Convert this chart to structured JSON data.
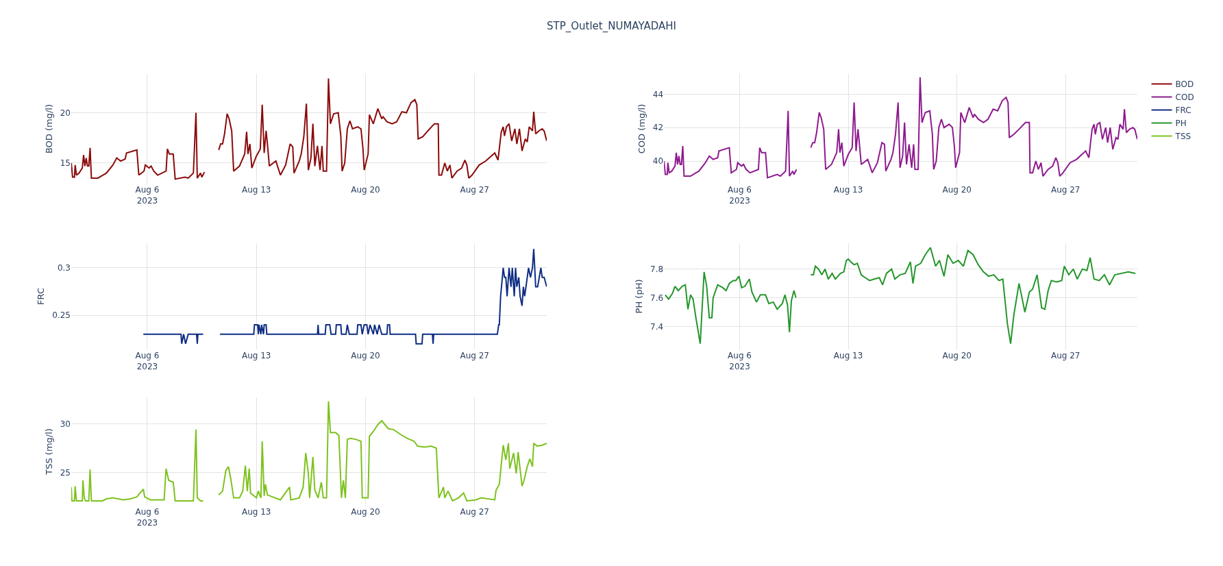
{
  "chart_data": [
    {
      "type": "line",
      "title": "STP_Outlet_NUMAYADAHI",
      "ylabel": "BOD (mg/l)",
      "grid": true,
      "legend": "top right",
      "xlim": [
        "2023-08-01T03:00",
        "2023-08-31T15:00"
      ],
      "xticks": [
        {
          "value": "2023-08-06",
          "label": "Aug 6\n2023"
        },
        {
          "value": "2023-08-13",
          "label": "Aug 13"
        },
        {
          "value": "2023-08-20",
          "label": "Aug 20"
        },
        {
          "value": "2023-08-27",
          "label": "Aug 27"
        }
      ],
      "ylim": [
        12.95,
        23.85
      ],
      "yticks": [
        15,
        20
      ],
      "x": [
        "2023-08-01T03:00",
        "2023-08-01T05:00",
        "2023-08-01T08:00",
        "2023-08-01T09:00",
        "2023-08-01T11:00",
        "2023-08-01T15:00",
        "2023-08-01T20:00",
        "2023-08-01T22:00",
        "2023-08-02T00:00",
        "2023-08-02T02:00",
        "2023-08-02T04:00",
        "2023-08-02T06:00",
        "2023-08-02T08:00",
        "2023-08-02T10:00",
        "2023-08-02T20:00",
        "2023-08-03T09:00",
        "2023-08-03T19:00",
        "2023-08-04T01:00",
        "2023-08-04T07:00",
        "2023-08-04T14:00",
        "2023-08-04T16:00",
        "2023-08-05T08:00",
        "2023-08-05T11:00",
        "2023-08-05T19:00",
        "2023-08-05T21:00",
        "2023-08-06T03:00",
        "2023-08-06T06:00",
        "2023-08-06T10:00",
        "2023-08-06T16:00",
        "2023-08-07T05:00",
        "2023-08-07T07:00",
        "2023-08-07T10:00",
        "2023-08-07T16:00",
        "2023-08-07T19:00",
        "2023-08-08T10:00",
        "2023-08-08T15:00",
        "2023-08-08T23:00",
        "2023-08-09T03:00",
        "2023-08-09T05:00",
        "2023-08-09T10:00",
        "2023-08-09T12:00",
        "2023-08-09T16:00",
        "2023-08-10T02:00",
        "2023-08-10T14:00",
        "2023-08-10T17:00",
        "2023-08-10T20:00",
        "2023-08-10T23:00",
        "2023-08-11T03:00",
        "2023-08-11T06:00",
        "2023-08-11T10:00",
        "2023-08-11T13:00",
        "2023-08-11T22:00",
        "2023-08-12T06:00",
        "2023-08-12T09:00",
        "2023-08-12T11:00",
        "2023-08-12T14:00",
        "2023-08-12T17:00",
        "2023-08-13T00:00",
        "2023-08-13T06:00",
        "2023-08-13T09:00",
        "2023-08-13T12:00",
        "2023-08-13T15:00",
        "2023-08-13T17:00",
        "2023-08-13T20:00",
        "2023-08-14T06:00",
        "2023-08-14T13:00",
        "2023-08-14T21:00",
        "2023-08-15T04:00",
        "2023-08-15T08:00",
        "2023-08-15T10:00",
        "2023-08-15T18:00",
        "2023-08-15T21:00",
        "2023-08-16T01:00",
        "2023-08-16T05:00",
        "2023-08-16T08:00",
        "2023-08-16T12:00",
        "2023-08-16T15:00",
        "2023-08-16T18:00",
        "2023-08-16T22:00",
        "2023-08-17T02:00",
        "2023-08-17T05:00",
        "2023-08-17T07:00",
        "2023-08-17T12:00",
        "2023-08-17T15:00",
        "2023-08-17T18:00",
        "2023-08-17T23:00",
        "2023-08-18T06:00",
        "2023-08-18T10:00",
        "2023-08-18T12:00",
        "2023-08-18T16:00",
        "2023-08-18T20:00",
        "2023-08-19T00:00",
        "2023-08-19T04:00",
        "2023-08-19T12:00",
        "2023-08-19T17:00",
        "2023-08-19T20:00",
        "2023-08-19T22:00",
        "2023-08-20T04:00",
        "2023-08-20T06:00",
        "2023-08-20T12:00",
        "2023-08-20T19:00",
        "2023-08-21T01:00",
        "2023-08-21T03:00",
        "2023-08-21T09:00",
        "2023-08-21T17:00",
        "2023-08-22T00:00",
        "2023-08-22T08:00",
        "2023-08-22T15:00",
        "2023-08-22T22:00",
        "2023-08-23T04:00",
        "2023-08-23T07:00",
        "2023-08-23T09:00",
        "2023-08-23T16:00",
        "2023-08-24T00:00",
        "2023-08-24T10:00",
        "2023-08-24T16:00",
        "2023-08-24T17:00",
        "2023-08-24T21:00",
        "2023-08-25T02:00",
        "2023-08-25T06:00",
        "2023-08-25T10:00",
        "2023-08-25T13:00",
        "2023-08-25T21:00",
        "2023-08-26T04:00",
        "2023-08-26T09:00",
        "2023-08-26T12:00",
        "2023-08-26T15:00",
        "2023-08-26T20:00",
        "2023-08-27T07:00",
        "2023-08-27T17:00",
        "2023-08-28T07:00",
        "2023-08-28T12:00",
        "2023-08-28T17:00",
        "2023-08-28T20:00",
        "2023-08-28T22:00",
        "2023-08-29T01:00",
        "2023-08-29T05:00",
        "2023-08-29T09:00",
        "2023-08-29T14:00",
        "2023-08-29T17:00",
        "2023-08-29T21:00",
        "2023-08-30T01:00",
        "2023-08-30T06:00",
        "2023-08-30T09:00",
        "2023-08-30T12:00",
        "2023-08-30T17:00",
        "2023-08-30T19:00",
        "2023-08-30T22:00",
        "2023-08-31T03:00",
        "2023-08-31T08:00",
        "2023-08-31T11:00",
        "2023-08-31T15:00"
      ],
      "series": [
        {
          "name": "BOD",
          "color": "#8b0a0a",
          "values": [
            15.0,
            13.6,
            13.6,
            14.8,
            13.8,
            14.0,
            14.5,
            15.8,
            14.7,
            15.5,
            14.7,
            14.7,
            16.5,
            13.5,
            13.5,
            14.0,
            14.8,
            15.5,
            15.2,
            15.4,
            16.0,
            16.3,
            13.8,
            14.2,
            14.8,
            14.5,
            14.7,
            14.2,
            13.8,
            14.2,
            16.4,
            15.9,
            15.9,
            13.4,
            13.6,
            13.5,
            14.0,
            20.0,
            13.5,
            14.0,
            13.6,
            14.1,
            null,
            16.3,
            16.9,
            16.9,
            17.9,
            19.9,
            19.4,
            18.2,
            14.2,
            14.7,
            15.9,
            18.1,
            15.9,
            16.9,
            14.5,
            15.7,
            16.4,
            20.8,
            16.0,
            18.2,
            16.9,
            14.7,
            15.2,
            13.8,
            14.8,
            16.9,
            16.6,
            14.0,
            15.2,
            15.9,
            17.6,
            20.9,
            14.3,
            15.5,
            18.9,
            14.7,
            16.7,
            14.3,
            16.7,
            14.2,
            14.2,
            23.4,
            18.9,
            19.9,
            20.0,
            17.7,
            14.2,
            15.0,
            18.4,
            19.2,
            18.4,
            18.6,
            18.4,
            16.5,
            14.3,
            15.9,
            19.8,
            18.9,
            20.4,
            19.4,
            19.6,
            19.1,
            18.9,
            19.1,
            20.1,
            20.0,
            21.0,
            21.3,
            20.8,
            17.4,
            17.6,
            18.2,
            18.9,
            18.9,
            13.8,
            13.8,
            15.0,
            14.2,
            14.8,
            13.5,
            14.2,
            14.5,
            15.3,
            14.8,
            13.5,
            13.8,
            14.8,
            15.2,
            16.0,
            15.3,
            18.1,
            18.6,
            17.7,
            18.6,
            18.9,
            17.2,
            18.4,
            16.9,
            18.4,
            16.2,
            17.4,
            17.1,
            18.6,
            18.2,
            20.1,
            17.9,
            18.2,
            18.4,
            18.2,
            17.2
          ]
        }
      ]
    },
    {
      "type": "line",
      "ylabel": "COD (mg/l)",
      "grid": true,
      "legend": "top right",
      "xlim": [
        "2023-08-01T03:00",
        "2023-08-31T15:00"
      ],
      "xticks": [
        {
          "value": "2023-08-06",
          "label": "Aug 6\n2023"
        },
        {
          "value": "2023-08-13",
          "label": "Aug 13"
        },
        {
          "value": "2023-08-20",
          "label": "Aug 20"
        },
        {
          "value": "2023-08-27",
          "label": "Aug 27"
        }
      ],
      "ylim": [
        38.65,
        45.2
      ],
      "yticks": [
        40,
        42,
        44
      ],
      "x": [
        "2023-08-01T03:00",
        "2023-08-01T05:00",
        "2023-08-01T08:00",
        "2023-08-01T09:00",
        "2023-08-01T11:00",
        "2023-08-01T15:00",
        "2023-08-01T20:00",
        "2023-08-01T22:00",
        "2023-08-02T00:00",
        "2023-08-02T02:00",
        "2023-08-02T04:00",
        "2023-08-02T06:00",
        "2023-08-02T08:00",
        "2023-08-02T10:00",
        "2023-08-02T20:00",
        "2023-08-03T09:00",
        "2023-08-03T19:00",
        "2023-08-04T01:00",
        "2023-08-04T07:00",
        "2023-08-04T14:00",
        "2023-08-04T16:00",
        "2023-08-05T08:00",
        "2023-08-05T11:00",
        "2023-08-05T19:00",
        "2023-08-05T21:00",
        "2023-08-06T03:00",
        "2023-08-06T06:00",
        "2023-08-06T10:00",
        "2023-08-06T16:00",
        "2023-08-07T05:00",
        "2023-08-07T07:00",
        "2023-08-07T10:00",
        "2023-08-07T16:00",
        "2023-08-07T19:00",
        "2023-08-08T10:00",
        "2023-08-08T15:00",
        "2023-08-08T23:00",
        "2023-08-09T03:00",
        "2023-08-09T05:00",
        "2023-08-09T10:00",
        "2023-08-09T12:00",
        "2023-08-09T16:00",
        "2023-08-10T02:00",
        "2023-08-10T14:00",
        "2023-08-10T17:00",
        "2023-08-10T20:00",
        "2023-08-10T23:00",
        "2023-08-11T03:00",
        "2023-08-11T06:00",
        "2023-08-11T10:00",
        "2023-08-11T13:00",
        "2023-08-11T22:00",
        "2023-08-12T06:00",
        "2023-08-12T09:00",
        "2023-08-12T11:00",
        "2023-08-12T14:00",
        "2023-08-12T17:00",
        "2023-08-13T00:00",
        "2023-08-13T06:00",
        "2023-08-13T09:00",
        "2023-08-13T12:00",
        "2023-08-13T15:00",
        "2023-08-13T17:00",
        "2023-08-13T20:00",
        "2023-08-14T06:00",
        "2023-08-14T13:00",
        "2023-08-14T21:00",
        "2023-08-15T04:00",
        "2023-08-15T08:00",
        "2023-08-15T10:00",
        "2023-08-15T18:00",
        "2023-08-15T21:00",
        "2023-08-16T01:00",
        "2023-08-16T05:00",
        "2023-08-16T08:00",
        "2023-08-16T12:00",
        "2023-08-16T15:00",
        "2023-08-16T18:00",
        "2023-08-16T22:00",
        "2023-08-17T02:00",
        "2023-08-17T05:00",
        "2023-08-17T07:00",
        "2023-08-17T12:00",
        "2023-08-17T15:00",
        "2023-08-17T18:00",
        "2023-08-17T23:00",
        "2023-08-18T06:00",
        "2023-08-18T10:00",
        "2023-08-18T12:00",
        "2023-08-18T16:00",
        "2023-08-18T20:00",
        "2023-08-19T00:00",
        "2023-08-19T04:00",
        "2023-08-19T12:00",
        "2023-08-19T17:00",
        "2023-08-19T20:00",
        "2023-08-19T22:00",
        "2023-08-20T04:00",
        "2023-08-20T06:00",
        "2023-08-20T12:00",
        "2023-08-20T19:00",
        "2023-08-21T01:00",
        "2023-08-21T03:00",
        "2023-08-21T09:00",
        "2023-08-21T17:00",
        "2023-08-22T00:00",
        "2023-08-22T08:00",
        "2023-08-22T15:00",
        "2023-08-22T22:00",
        "2023-08-23T04:00",
        "2023-08-23T07:00",
        "2023-08-23T09:00",
        "2023-08-23T16:00",
        "2023-08-24T00:00",
        "2023-08-24T10:00",
        "2023-08-24T16:00",
        "2023-08-24T17:00",
        "2023-08-24T21:00",
        "2023-08-25T02:00",
        "2023-08-25T06:00",
        "2023-08-25T10:00",
        "2023-08-25T13:00",
        "2023-08-25T21:00",
        "2023-08-26T04:00",
        "2023-08-26T09:00",
        "2023-08-26T12:00",
        "2023-08-26T15:00",
        "2023-08-26T20:00",
        "2023-08-27T07:00",
        "2023-08-27T17:00",
        "2023-08-28T07:00",
        "2023-08-28T12:00",
        "2023-08-28T17:00",
        "2023-08-28T20:00",
        "2023-08-28T22:00",
        "2023-08-29T01:00",
        "2023-08-29T05:00",
        "2023-08-29T09:00",
        "2023-08-29T14:00",
        "2023-08-29T17:00",
        "2023-08-29T21:00",
        "2023-08-30T01:00",
        "2023-08-30T06:00",
        "2023-08-30T09:00",
        "2023-08-30T12:00",
        "2023-08-30T17:00",
        "2023-08-30T19:00",
        "2023-08-30T22:00",
        "2023-08-31T03:00",
        "2023-08-31T08:00",
        "2023-08-31T11:00",
        "2023-08-31T15:00"
      ],
      "series": [
        {
          "name": "COD",
          "color": "#8e1a8e",
          "values": [
            40.0,
            39.2,
            39.2,
            39.9,
            39.3,
            39.4,
            39.7,
            40.5,
            39.8,
            40.3,
            39.8,
            39.8,
            40.9,
            39.1,
            39.1,
            39.4,
            39.9,
            40.3,
            40.1,
            40.2,
            40.6,
            40.8,
            39.3,
            39.5,
            39.9,
            39.7,
            39.8,
            39.5,
            39.3,
            39.5,
            40.8,
            40.5,
            40.5,
            39.0,
            39.2,
            39.1,
            39.4,
            43.0,
            39.1,
            39.4,
            39.2,
            39.5,
            null,
            40.8,
            41.1,
            41.1,
            41.7,
            42.9,
            42.6,
            41.9,
            39.5,
            39.8,
            40.5,
            41.9,
            40.5,
            41.1,
            39.7,
            40.4,
            40.8,
            43.5,
            40.6,
            41.9,
            41.1,
            39.8,
            40.1,
            39.3,
            39.9,
            41.1,
            41.0,
            39.4,
            40.1,
            40.5,
            41.6,
            43.5,
            39.6,
            40.3,
            42.3,
            39.8,
            41.0,
            39.6,
            41.0,
            39.5,
            39.5,
            45.0,
            42.3,
            42.9,
            43.0,
            41.6,
            39.5,
            40.0,
            42.0,
            42.5,
            42.0,
            42.2,
            42.0,
            40.9,
            39.6,
            40.5,
            42.9,
            42.3,
            43.2,
            42.6,
            42.8,
            42.5,
            42.3,
            42.5,
            43.1,
            43.0,
            43.6,
            43.8,
            43.5,
            41.4,
            41.6,
            41.9,
            42.3,
            42.3,
            39.3,
            39.3,
            40.0,
            39.5,
            39.9,
            39.1,
            39.5,
            39.7,
            40.2,
            39.9,
            39.1,
            39.3,
            39.9,
            40.1,
            40.6,
            40.2,
            41.9,
            42.2,
            41.6,
            42.2,
            42.3,
            41.3,
            42.0,
            41.1,
            42.0,
            40.7,
            41.4,
            41.3,
            42.2,
            41.9,
            43.1,
            41.7,
            41.9,
            42.0,
            41.9,
            41.3
          ]
        }
      ]
    },
    {
      "type": "line",
      "ylabel": "FRC",
      "grid": true,
      "legend": "top right",
      "xlim": [
        "2023-08-01T03:00",
        "2023-08-31T15:00"
      ],
      "xticks": [
        {
          "value": "2023-08-06",
          "label": "Aug 6\n2023"
        },
        {
          "value": "2023-08-13",
          "label": "Aug 13"
        },
        {
          "value": "2023-08-20",
          "label": "Aug 20"
        },
        {
          "value": "2023-08-27",
          "label": "Aug 27"
        }
      ],
      "ylim": [
        0.214,
        0.326
      ],
      "yticks": [
        0.25,
        0.3
      ],
      "x": [
        "2023-08-05T18:00",
        "2023-08-08T04:00",
        "2023-08-08T05:00",
        "2023-08-08T08:00",
        "2023-08-08T11:00",
        "2023-08-08T15:00",
        "2023-08-09T04:00",
        "2023-08-09T05:00",
        "2023-08-09T06:00",
        "2023-08-09T14:00",
        "2023-08-10T02:00",
        "2023-08-10T16:00",
        "2023-08-12T20:00",
        "2023-08-12T21:00",
        "2023-08-13T02:00",
        "2023-08-13T03:00",
        "2023-08-13T04:00",
        "2023-08-13T07:00",
        "2023-08-13T08:00",
        "2023-08-13T11:00",
        "2023-08-13T12:00",
        "2023-08-13T15:00",
        "2023-08-13T16:00",
        "2023-08-16T22:00",
        "2023-08-16T23:00",
        "2023-08-17T00:00",
        "2023-08-17T10:00",
        "2023-08-17T11:00",
        "2023-08-17T17:00",
        "2023-08-17T19:00",
        "2023-08-18T02:00",
        "2023-08-18T03:00",
        "2023-08-18T10:00",
        "2023-08-18T11:00",
        "2023-08-18T18:00",
        "2023-08-18T20:00",
        "2023-08-18T23:00",
        "2023-08-19T11:00",
        "2023-08-19T12:00",
        "2023-08-19T17:00",
        "2023-08-19T19:00",
        "2023-08-19T22:00",
        "2023-08-20T02:00",
        "2023-08-20T04:00",
        "2023-08-20T07:00",
        "2023-08-20T12:00",
        "2023-08-20T14:00",
        "2023-08-20T18:00",
        "2023-08-20T21:00",
        "2023-08-21T01:00",
        "2023-08-21T09:00",
        "2023-08-21T10:00",
        "2023-08-21T13:00",
        "2023-08-21T14:00",
        "2023-08-23T05:00",
        "2023-08-23T06:00",
        "2023-08-23T15:00",
        "2023-08-23T16:00",
        "2023-08-24T07:00",
        "2023-08-24T08:00",
        "2023-08-24T09:00",
        "2023-08-28T11:00",
        "2023-08-28T13:00",
        "2023-08-28T14:00",
        "2023-08-28T16:00",
        "2023-08-28T20:00",
        "2023-08-28T22:00",
        "2023-08-29T00:00",
        "2023-08-29T02:00",
        "2023-08-29T05:00",
        "2023-08-29T08:00",
        "2023-08-29T10:00",
        "2023-08-29T13:00",
        "2023-08-29T15:00",
        "2023-08-29T17:00",
        "2023-08-29T20:00",
        "2023-08-29T22:00",
        "2023-08-30T01:00",
        "2023-08-30T03:00",
        "2023-08-30T05:00",
        "2023-08-30T09:00",
        "2023-08-30T11:00",
        "2023-08-30T14:00",
        "2023-08-30T17:00",
        "2023-08-30T19:00",
        "2023-08-30T22:00",
        "2023-08-31T01:00",
        "2023-08-31T06:00",
        "2023-08-31T08:00",
        "2023-08-31T11:00",
        "2023-08-31T15:00"
      ],
      "series": [
        {
          "name": "FRC",
          "color": "#0e2d84",
          "values": [
            0.23,
            0.23,
            0.22,
            0.23,
            0.22,
            0.23,
            0.23,
            0.22,
            0.23,
            0.23,
            null,
            0.23,
            0.23,
            0.24,
            0.24,
            0.23,
            0.24,
            0.23,
            0.24,
            0.23,
            0.24,
            0.24,
            0.23,
            0.23,
            0.24,
            0.23,
            0.23,
            0.24,
            0.24,
            0.23,
            0.23,
            0.24,
            0.24,
            0.23,
            0.23,
            0.24,
            0.23,
            0.23,
            0.24,
            0.24,
            0.23,
            0.24,
            0.24,
            0.23,
            0.24,
            0.23,
            0.24,
            0.23,
            0.24,
            0.23,
            0.23,
            0.24,
            0.24,
            0.23,
            0.23,
            0.22,
            0.22,
            0.23,
            0.23,
            0.22,
            0.23,
            0.23,
            0.24,
            0.24,
            0.27,
            0.3,
            0.29,
            0.29,
            0.27,
            0.3,
            0.28,
            0.3,
            0.27,
            0.3,
            0.28,
            0.29,
            0.27,
            0.26,
            0.28,
            0.27,
            0.29,
            0.3,
            0.29,
            0.3,
            0.32,
            0.28,
            0.28,
            0.3,
            0.29,
            0.29,
            0.28
          ]
        }
      ]
    },
    {
      "type": "line",
      "ylabel": "PH (pH)",
      "grid": true,
      "legend": "top right",
      "xlim": [
        "2023-08-01T03:00",
        "2023-08-31T15:00"
      ],
      "xticks": [
        {
          "value": "2023-08-06",
          "label": "Aug 6\n2023"
        },
        {
          "value": "2023-08-13",
          "label": "Aug 13"
        },
        {
          "value": "2023-08-20",
          "label": "Aug 20"
        },
        {
          "value": "2023-08-27",
          "label": "Aug 27"
        }
      ],
      "ylim": [
        7.24,
        7.98
      ],
      "yticks": [
        7.4,
        7.6,
        7.8
      ],
      "x": [
        "2023-08-01T05:00",
        "2023-08-01T10:00",
        "2023-08-01T16:00",
        "2023-08-01T20:00",
        "2023-08-02T01:00",
        "2023-08-02T07:00",
        "2023-08-02T12:00",
        "2023-08-02T16:00",
        "2023-08-02T20:00",
        "2023-08-03T00:00",
        "2023-08-03T04:00",
        "2023-08-03T11:00",
        "2023-08-03T17:00",
        "2023-08-03T21:00",
        "2023-08-04T01:00",
        "2023-08-04T05:00",
        "2023-08-04T07:00",
        "2023-08-04T14:00",
        "2023-08-04T22:00",
        "2023-08-05T03:00",
        "2023-08-05T08:00",
        "2023-08-05T14:00",
        "2023-08-05T18:00",
        "2023-08-05T23:00",
        "2023-08-06T03:00",
        "2023-08-06T08:00",
        "2023-08-06T15:00",
        "2023-08-06T19:00",
        "2023-08-07T02:00",
        "2023-08-07T08:00",
        "2023-08-07T16:00",
        "2023-08-07T21:00",
        "2023-08-08T04:00",
        "2023-08-08T10:00",
        "2023-08-08T18:00",
        "2023-08-08T22:00",
        "2023-08-09T02:00",
        "2023-08-09T05:00",
        "2023-08-09T08:00",
        "2023-08-09T12:00",
        "2023-08-09T15:00",
        "2023-08-10T02:00",
        "2023-08-10T14:00",
        "2023-08-10T18:00",
        "2023-08-10T21:00",
        "2023-08-11T02:00",
        "2023-08-11T07:00",
        "2023-08-11T12:00",
        "2023-08-11T17:00",
        "2023-08-11T23:00",
        "2023-08-12T04:00",
        "2023-08-12T12:00",
        "2023-08-12T17:00",
        "2023-08-12T21:00",
        "2023-08-13T00:00",
        "2023-08-13T04:00",
        "2023-08-13T09:00",
        "2023-08-13T14:00",
        "2023-08-13T20:00",
        "2023-08-14T02:00",
        "2023-08-14T09:00",
        "2023-08-14T16:00",
        "2023-08-15T00:00",
        "2023-08-15T05:00",
        "2023-08-15T11:00",
        "2023-08-15T19:00",
        "2023-08-16T00:00",
        "2023-08-16T08:00",
        "2023-08-16T16:00",
        "2023-08-17T00:00",
        "2023-08-17T04:00",
        "2023-08-17T08:00",
        "2023-08-17T16:00",
        "2023-08-17T23:00",
        "2023-08-18T07:00",
        "2023-08-18T15:00",
        "2023-08-18T21:00",
        "2023-08-19T04:00",
        "2023-08-19T10:00",
        "2023-08-19T18:00",
        "2023-08-20T02:00",
        "2023-08-20T10:00",
        "2023-08-20T17:00",
        "2023-08-21T01:00",
        "2023-08-21T09:00",
        "2023-08-21T17:00",
        "2023-08-22T01:00",
        "2023-08-22T09:00",
        "2023-08-22T17:00",
        "2023-08-22T23:00",
        "2023-08-23T06:00",
        "2023-08-23T11:00",
        "2023-08-23T16:00",
        "2023-08-24T00:00",
        "2023-08-24T06:00",
        "2023-08-24T09:00",
        "2023-08-24T16:00",
        "2023-08-24T21:00",
        "2023-08-25T04:00",
        "2023-08-25T11:00",
        "2023-08-25T16:00",
        "2023-08-25T21:00",
        "2023-08-26T02:00",
        "2023-08-26T10:00",
        "2023-08-26T18:00",
        "2023-08-26T22:00",
        "2023-08-27T05:00",
        "2023-08-27T12:00",
        "2023-08-27T18:00",
        "2023-08-28T02:00",
        "2023-08-28T09:00",
        "2023-08-28T14:00",
        "2023-08-28T20:00",
        "2023-08-29T04:00",
        "2023-08-29T12:00",
        "2023-08-29T20:00",
        "2023-08-30T04:00",
        "2023-08-31T01:00",
        "2023-08-31T12:00"
      ],
      "series": [
        {
          "name": "PH",
          "color": "#24962a",
          "values": [
            7.62,
            7.59,
            7.63,
            7.68,
            7.65,
            7.68,
            7.69,
            7.52,
            7.62,
            7.59,
            7.47,
            7.28,
            7.78,
            7.68,
            7.46,
            7.46,
            7.6,
            7.69,
            7.67,
            7.65,
            7.7,
            7.72,
            7.72,
            7.75,
            7.67,
            7.68,
            7.73,
            7.64,
            7.57,
            7.62,
            7.62,
            7.56,
            7.57,
            7.52,
            7.56,
            7.62,
            7.55,
            7.36,
            7.58,
            7.65,
            7.6,
            null,
            7.76,
            7.76,
            7.82,
            7.8,
            7.76,
            7.8,
            7.73,
            7.77,
            7.73,
            7.77,
            7.78,
            7.86,
            7.87,
            7.85,
            7.83,
            7.84,
            7.76,
            7.74,
            7.72,
            7.73,
            7.74,
            7.69,
            7.77,
            7.8,
            7.73,
            7.76,
            7.77,
            7.85,
            7.7,
            7.82,
            7.84,
            7.9,
            7.95,
            7.82,
            7.86,
            7.75,
            7.9,
            7.84,
            7.86,
            7.82,
            7.93,
            7.9,
            7.83,
            7.78,
            7.75,
            7.76,
            7.72,
            7.73,
            7.42,
            7.28,
            7.48,
            7.7,
            7.57,
            7.5,
            7.64,
            7.66,
            7.76,
            7.53,
            7.52,
            7.65,
            7.72,
            7.71,
            7.72,
            7.82,
            7.76,
            7.8,
            7.73,
            7.8,
            7.79,
            7.88,
            7.73,
            7.72,
            7.76,
            7.69,
            7.76,
            7.78,
            7.77
          ]
        }
      ]
    },
    {
      "type": "line",
      "ylabel": "TSS (mg/l)",
      "grid": true,
      "legend": "top right",
      "xlim": [
        "2023-08-01T03:00",
        "2023-08-31T15:00"
      ],
      "xticks": [
        {
          "value": "2023-08-06",
          "label": "Aug 6\n2023"
        },
        {
          "value": "2023-08-13",
          "label": "Aug 13"
        },
        {
          "value": "2023-08-20",
          "label": "Aug 20"
        },
        {
          "value": "2023-08-27",
          "label": "Aug 27"
        }
      ],
      "ylim": [
        21.6,
        32.7
      ],
      "yticks": [
        25,
        30
      ],
      "x": [
        "2023-08-01T03:00",
        "2023-08-01T04:00",
        "2023-08-01T08:00",
        "2023-08-01T09:00",
        "2023-08-01T11:00",
        "2023-08-01T20:00",
        "2023-08-01T21:00",
        "2023-08-01T23:00",
        "2023-08-02T01:00",
        "2023-08-02T06:00",
        "2023-08-02T08:00",
        "2023-08-02T10:00",
        "2023-08-03T03:00",
        "2023-08-03T09:00",
        "2023-08-03T19:00",
        "2023-08-04T11:00",
        "2023-08-04T22:00",
        "2023-08-05T08:00",
        "2023-08-05T18:00",
        "2023-08-05T20:00",
        "2023-08-06T05:00",
        "2023-08-07T02:00",
        "2023-08-07T05:00",
        "2023-08-07T09:00",
        "2023-08-07T16:00",
        "2023-08-07T19:00",
        "2023-08-08T23:00",
        "2023-08-09T03:00",
        "2023-08-09T05:00",
        "2023-08-09T10:00",
        "2023-08-09T14:00",
        "2023-08-10T02:00",
        "2023-08-10T14:00",
        "2023-08-10T20:00",
        "2023-08-11T01:00",
        "2023-08-11T05:00",
        "2023-08-11T09:00",
        "2023-08-11T13:00",
        "2023-08-11T22:00",
        "2023-08-12T03:00",
        "2023-08-12T07:00",
        "2023-08-12T10:00",
        "2023-08-12T13:00",
        "2023-08-12T15:00",
        "2023-08-13T00:00",
        "2023-08-13T03:00",
        "2023-08-13T07:00",
        "2023-08-13T09:00",
        "2023-08-13T12:00",
        "2023-08-13T14:00",
        "2023-08-13T17:00",
        "2023-08-14T13:00",
        "2023-08-15T03:00",
        "2023-08-15T05:00",
        "2023-08-15T18:00",
        "2023-08-16T00:00",
        "2023-08-16T04:00",
        "2023-08-16T08:00",
        "2023-08-16T10:00",
        "2023-08-16T15:00",
        "2023-08-16T18:00",
        "2023-08-16T23:00",
        "2023-08-17T04:00",
        "2023-08-17T07:00",
        "2023-08-17T12:00",
        "2023-08-17T15:00",
        "2023-08-17T18:00",
        "2023-08-18T02:00",
        "2023-08-18T07:00",
        "2023-08-18T11:00",
        "2023-08-18T14:00",
        "2023-08-18T17:00",
        "2023-08-18T20:00",
        "2023-08-19T01:00",
        "2023-08-19T09:00",
        "2023-08-19T17:00",
        "2023-08-19T19:00",
        "2023-08-20T04:00",
        "2023-08-20T06:00",
        "2023-08-20T12:00",
        "2023-08-20T19:00",
        "2023-08-21T01:00",
        "2023-08-21T06:00",
        "2023-08-21T11:00",
        "2023-08-21T19:00",
        "2023-08-22T06:00",
        "2023-08-22T16:00",
        "2023-08-23T03:00",
        "2023-08-23T08:00",
        "2023-08-23T19:00",
        "2023-08-24T05:00",
        "2023-08-24T13:00",
        "2023-08-24T17:00",
        "2023-08-25T00:00",
        "2023-08-25T02:00",
        "2023-08-25T07:00",
        "2023-08-25T14:00",
        "2023-08-25T23:00",
        "2023-08-26T07:00",
        "2023-08-26T12:00",
        "2023-08-27T02:00",
        "2023-08-27T10:00",
        "2023-08-28T07:00",
        "2023-08-28T09:00",
        "2023-08-28T14:00",
        "2023-08-28T20:00",
        "2023-08-29T00:00",
        "2023-08-29T04:00",
        "2023-08-29T06:00",
        "2023-08-29T12:00",
        "2023-08-29T16:00",
        "2023-08-29T19:00",
        "2023-08-30T01:00",
        "2023-08-30T04:00",
        "2023-08-30T09:00",
        "2023-08-30T13:00",
        "2023-08-30T17:00",
        "2023-08-30T19:00",
        "2023-08-31T00:00",
        "2023-08-31T08:00",
        "2023-08-31T15:00"
      ],
      "series": [
        {
          "name": "TSS",
          "color": "#7dc21e",
          "values": [
            23.5,
            22.1,
            22.1,
            23.6,
            22.1,
            22.1,
            24.2,
            22.4,
            22.1,
            22.1,
            25.3,
            22.1,
            22.1,
            22.3,
            22.4,
            22.2,
            22.3,
            22.5,
            23.3,
            22.5,
            22.2,
            22.2,
            25.4,
            24.2,
            24.0,
            22.1,
            22.1,
            29.4,
            22.4,
            22.1,
            22.1,
            null,
            22.7,
            23.1,
            25.2,
            25.6,
            24.2,
            22.4,
            22.4,
            23.1,
            25.7,
            23.1,
            25.4,
            22.9,
            22.4,
            23.1,
            22.4,
            28.2,
            22.6,
            23.8,
            22.7,
            22.2,
            23.5,
            22.2,
            22.4,
            23.5,
            27.0,
            24.9,
            22.4,
            26.6,
            23.2,
            22.4,
            24.0,
            22.4,
            22.4,
            32.3,
            29.1,
            29.1,
            28.8,
            22.4,
            24.2,
            22.4,
            28.4,
            28.5,
            28.4,
            28.2,
            22.4,
            22.4,
            28.7,
            29.2,
            29.9,
            30.3,
            29.9,
            29.5,
            29.4,
            28.9,
            28.5,
            28.2,
            27.7,
            27.6,
            27.7,
            27.5,
            22.4,
            23.5,
            22.4,
            23.1,
            22.1,
            22.4,
            22.9,
            22.1,
            22.2,
            22.4,
            22.2,
            23.2,
            23.8,
            27.8,
            26.3,
            28.0,
            25.4,
            27.0,
            24.9,
            27.1,
            23.6,
            24.2,
            25.6,
            26.4,
            25.6,
            28.0,
            27.7,
            27.8,
            28.0
          ]
        }
      ]
    }
  ]
}
